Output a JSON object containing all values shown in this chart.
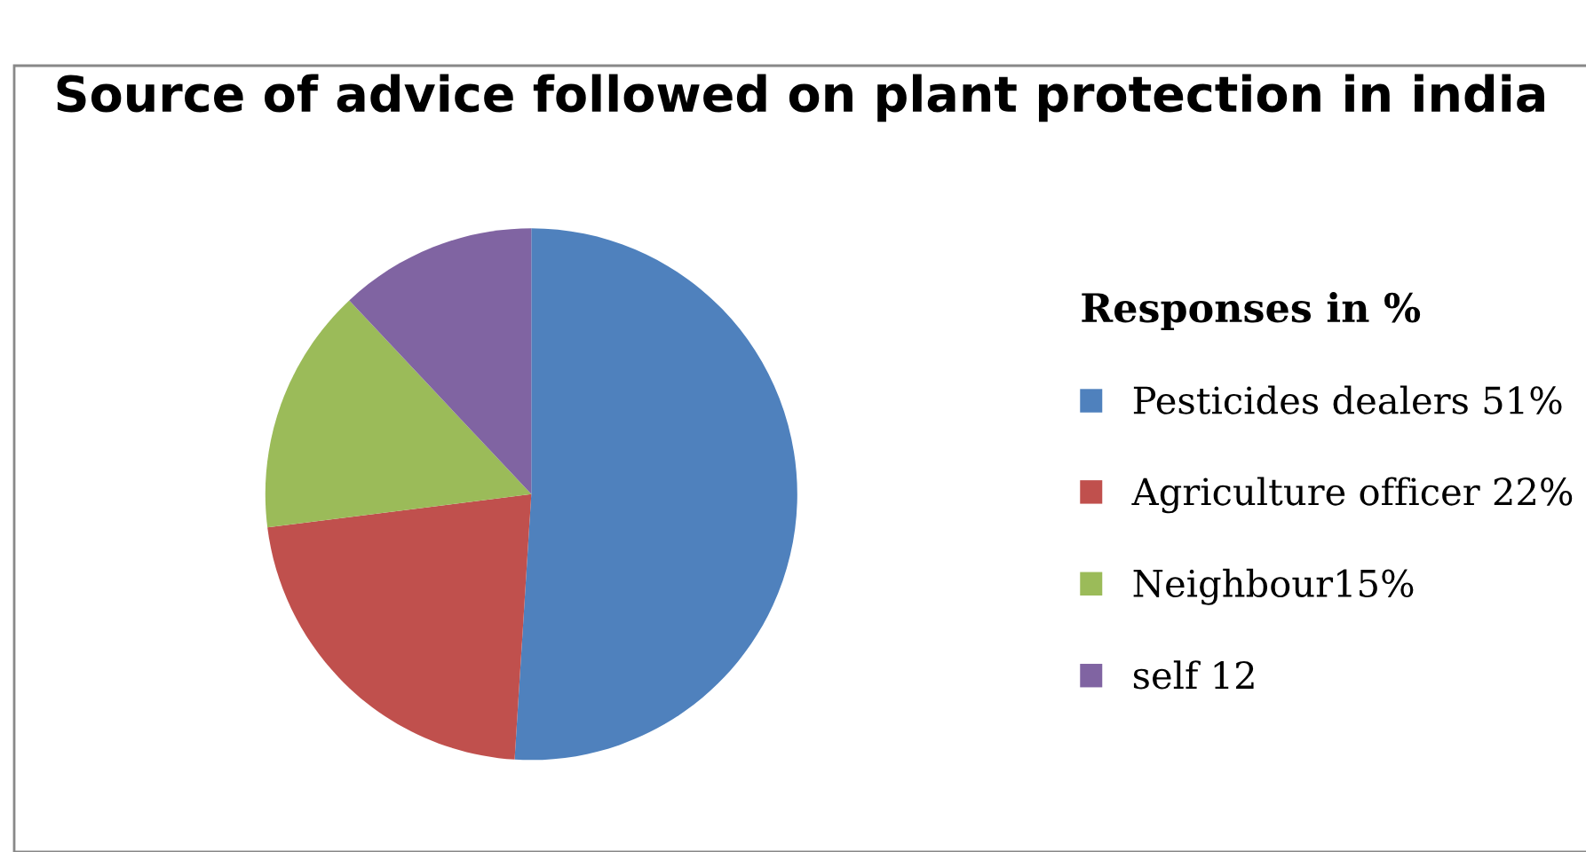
{
  "chart_data": {
    "type": "pie",
    "title": "Source of advice followed on plant protection in india",
    "legend_title": "Responses in %",
    "categories": [
      "Pesticides dealers 51%",
      "Agriculture officer 22%",
      "Neighbour15%",
      "self 12"
    ],
    "values": [
      51,
      22,
      15,
      12
    ],
    "colors": [
      "#4f81bd",
      "#c0504d",
      "#9bbb59",
      "#8064a2"
    ],
    "legend": "right"
  }
}
